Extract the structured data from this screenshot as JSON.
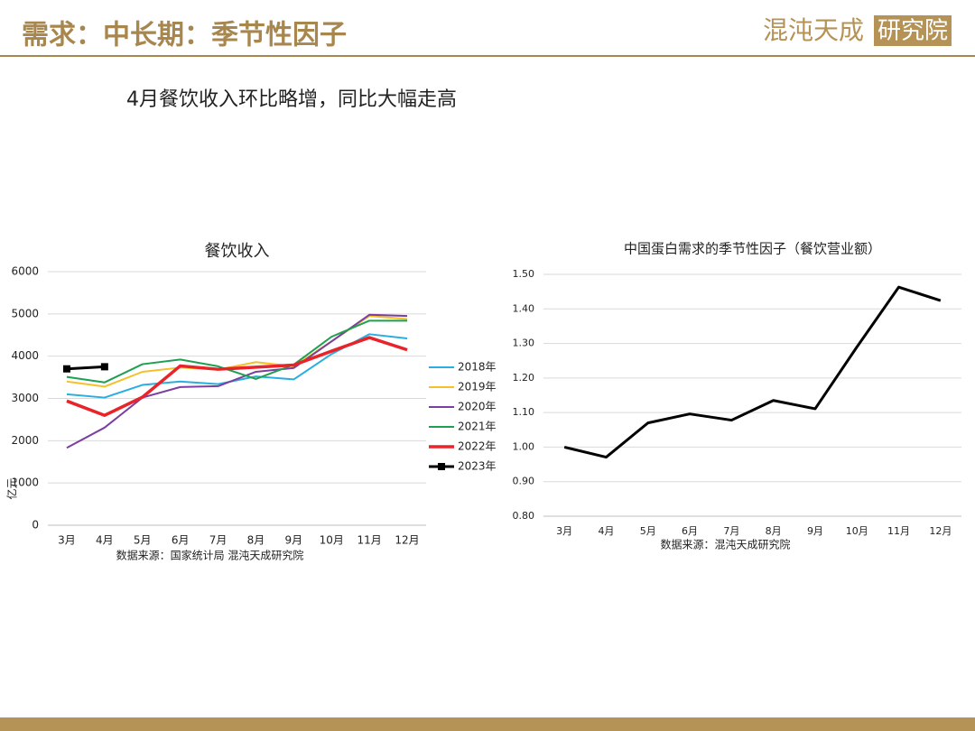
{
  "header": {
    "title": "需求：中长期：季节性因子",
    "logo_main": "混沌天成",
    "logo_box": "研究院"
  },
  "subtitle": "4月餐饮收入环比略增，同比大幅走高",
  "chart_data": [
    {
      "type": "line",
      "title": "餐饮收入",
      "y_label": "亿元",
      "source": "数据来源：国家统计局 混沌天成研究院",
      "categories": [
        "3月",
        "4月",
        "5月",
        "6月",
        "7月",
        "8月",
        "9月",
        "10月",
        "11月",
        "12月"
      ],
      "ylim": [
        0,
        6000
      ],
      "yticks": [
        0,
        1000,
        2000,
        3000,
        4000,
        5000,
        6000
      ],
      "grid": true,
      "legend": "right",
      "series": [
        {
          "name": "2018年",
          "color": "#2aaee0",
          "width": 2,
          "values": [
            3100,
            3020,
            3320,
            3400,
            3340,
            3520,
            3450,
            4050,
            4520,
            4420
          ]
        },
        {
          "name": "2019年",
          "color": "#f5c028",
          "width": 2,
          "values": [
            3400,
            3280,
            3630,
            3730,
            3680,
            3860,
            3760,
            4350,
            4950,
            4880
          ]
        },
        {
          "name": "2020年",
          "color": "#7a3fa0",
          "width": 2,
          "values": [
            1830,
            2310,
            3020,
            3270,
            3290,
            3630,
            3720,
            4350,
            4980,
            4950
          ]
        },
        {
          "name": "2021年",
          "color": "#1fa050",
          "width": 2,
          "values": [
            3510,
            3380,
            3810,
            3920,
            3760,
            3460,
            3800,
            4460,
            4840,
            4840
          ]
        },
        {
          "name": "2022年",
          "color": "#e8242a",
          "width": 3.5,
          "values": [
            2940,
            2600,
            3030,
            3770,
            3690,
            3740,
            3790,
            4120,
            4440,
            4150
          ]
        },
        {
          "name": "2023年",
          "color": "#000000",
          "width": 3,
          "marker": "square",
          "values": [
            3700,
            3750,
            null,
            null,
            null,
            null,
            null,
            null,
            null,
            null
          ]
        }
      ]
    },
    {
      "type": "line",
      "title": "中国蛋白需求的季节性因子（餐饮营业额）",
      "source": "数据来源：混沌天成研究院",
      "categories": [
        "3月",
        "4月",
        "5月",
        "6月",
        "7月",
        "8月",
        "9月",
        "10月",
        "11月",
        "12月"
      ],
      "ylim": [
        0.8,
        1.5
      ],
      "yticks": [
        {
          "value": 0.8,
          "label": "0.80"
        },
        {
          "value": 0.9,
          "label": "0.90"
        },
        {
          "value": 1.0,
          "label": "1.00"
        },
        {
          "value": 1.1,
          "label": "1.10"
        },
        {
          "value": 1.2,
          "label": "1.20"
        },
        {
          "value": 1.3,
          "label": "1.30"
        },
        {
          "value": 1.4,
          "label": "1.40"
        },
        {
          "value": 1.5,
          "label": "1.50"
        }
      ],
      "grid": true,
      "series": [
        {
          "color": "#000000",
          "width": 3,
          "values": [
            1.0,
            0.971,
            1.07,
            1.096,
            1.078,
            1.135,
            1.111,
            1.29,
            1.463,
            1.424
          ]
        }
      ]
    }
  ]
}
